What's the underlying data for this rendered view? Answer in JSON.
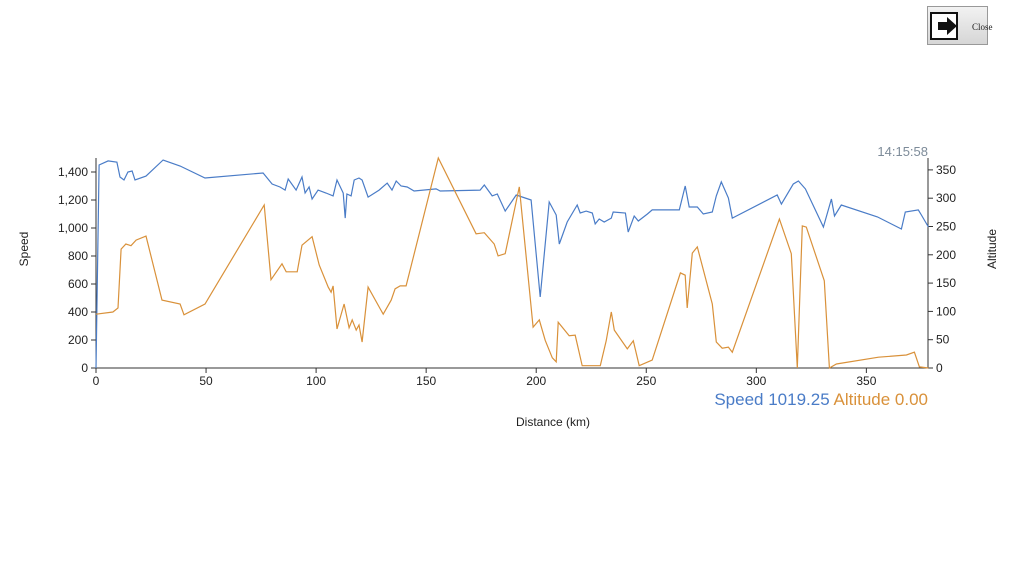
{
  "close_button": "Close",
  "chart_data": {
    "type": "line",
    "time": "14:15:58",
    "ylabel": "Speed",
    "y2label": "Altitude",
    "xlabel": "Distance (km)",
    "readouts": [
      "Speed 1019.25",
      "Altitude 0.00"
    ],
    "xlim": [
      0,
      378
    ],
    "xticks": [
      0,
      50,
      100,
      150,
      200,
      250,
      300,
      350
    ],
    "ylim": [
      0,
      1500
    ],
    "yticks": [
      0,
      200,
      400,
      600,
      800,
      {
        "value": 1000,
        "label": "1,000"
      },
      {
        "value": 1200,
        "label": "1,200"
      },
      {
        "value": 1400,
        "label": "1,400"
      }
    ],
    "y2lim": [
      0,
      371
    ],
    "y2ticks": [
      0,
      50,
      100,
      150,
      200,
      250,
      300,
      350
    ],
    "series": [
      {
        "name": "Speed",
        "color": "#4a7cc7",
        "x": [
          0,
          1.4,
          5.5,
          9.5,
          10.9,
          12.7,
          14.5,
          16.4,
          17.7,
          22.7,
          30.5,
          38.2,
          49.5,
          75.9,
          80,
          83.6,
          85.9,
          87.3,
          90.9,
          93.6,
          95,
          96.8,
          98.2,
          100.9,
          104.5,
          107.7,
          109.5,
          112.3,
          113.2,
          114,
          115.9,
          117.3,
          119.5,
          120.9,
          123.6,
          128.6,
          132.3,
          134.5,
          136.4,
          138.6,
          141.4,
          144.5,
          154.5,
          156.4,
          174.5,
          176.4,
          180,
          182.3,
          185.9,
          190.9,
          197.7,
          201.8,
          205.9,
          209.1,
          210.5,
          214.1,
          218.6,
          220,
          222.7,
          225.5,
          226.8,
          228.6,
          230.9,
          234.1,
          235,
          240.5,
          241.8,
          244.5,
          246.4,
          250.5,
          252.7,
          265,
          267.7,
          269.5,
          273.2,
          275.9,
          280,
          281.8,
          284.1,
          287.3,
          289.1,
          309.5,
          311.4,
          316.8,
          319.1,
          322.3,
          330.5,
          334.1,
          335.5,
          338.6,
          355,
          365.9,
          367.7,
          373.6,
          375,
          378.2
        ],
        "values": [
          0,
          1450,
          1479,
          1471,
          1364,
          1343,
          1400,
          1407,
          1343,
          1371,
          1486,
          1443,
          1357,
          1393,
          1314,
          1293,
          1271,
          1350,
          1271,
          1364,
          1250,
          1293,
          1207,
          1271,
          1250,
          1229,
          1343,
          1250,
          1071,
          1243,
          1229,
          1343,
          1357,
          1343,
          1221,
          1271,
          1321,
          1271,
          1336,
          1300,
          1293,
          1264,
          1279,
          1264,
          1271,
          1307,
          1229,
          1243,
          1121,
          1236,
          1200,
          507,
          1186,
          1093,
          886,
          1043,
          1164,
          1107,
          1121,
          1107,
          1029,
          1064,
          1043,
          1071,
          1114,
          1107,
          971,
          1086,
          1050,
          1100,
          1129,
          1129,
          1300,
          1150,
          1150,
          1100,
          1114,
          1229,
          1329,
          1214,
          1071,
          1236,
          1171,
          1314,
          1336,
          1279,
          1007,
          1207,
          1086,
          1164,
          1079,
          993,
          1114,
          1129,
          1093,
          1007
        ]
      },
      {
        "name": "Altitude",
        "color": "#d9913a",
        "axis": "y2",
        "x": [
          0,
          7.7,
          10,
          11.4,
          13.6,
          15.9,
          18.2,
          22.7,
          30,
          38.2,
          40,
          49.5,
          76.4,
          79.5,
          84.5,
          86.4,
          91.4,
          93.6,
          98.2,
          101.4,
          105.5,
          106.8,
          107.7,
          109.5,
          112.7,
          115,
          116.4,
          118.2,
          119.5,
          120.9,
          123.6,
          130.5,
          134.1,
          135.9,
          138.2,
          140.9,
          155.5,
          172.7,
          176.4,
          180.9,
          182.7,
          185.9,
          192.3,
          198.6,
          201.4,
          204.1,
          207.3,
          209.1,
          210,
          215,
          217.7,
          220.9,
          225.5,
          229.1,
          231.8,
          234.1,
          235.5,
          241.4,
          244.1,
          246.8,
          252.7,
          265.5,
          267.7,
          268.6,
          270.9,
          273.2,
          280,
          281.8,
          284.5,
          287.3,
          289.1,
          310.5,
          315.9,
          318.6,
          320.9,
          322.7,
          330.9,
          333.2,
          336.4,
          355.5,
          368.2,
          371.8,
          374.1,
          378.2
        ],
        "values": [
          95,
          99,
          106,
          210,
          219,
          216,
          226,
          233,
          120,
          113,
          94,
          113,
          288,
          156,
          184,
          170,
          170,
          217,
          232,
          182,
          143,
          134,
          145,
          69,
          113,
          71,
          85,
          67,
          76,
          46,
          143,
          95,
          120,
          140,
          145,
          145,
          371,
          237,
          239,
          219,
          198,
          202,
          320,
          72,
          85,
          49,
          18,
          11,
          81,
          57,
          58,
          4,
          4,
          4,
          48,
          99,
          67,
          34,
          48,
          4,
          14,
          168,
          164,
          106,
          203,
          214,
          113,
          46,
          35,
          37,
          28,
          263,
          202,
          0,
          251,
          249,
          154,
          0,
          7,
          19,
          23,
          28,
          2,
          0
        ]
      }
    ]
  }
}
